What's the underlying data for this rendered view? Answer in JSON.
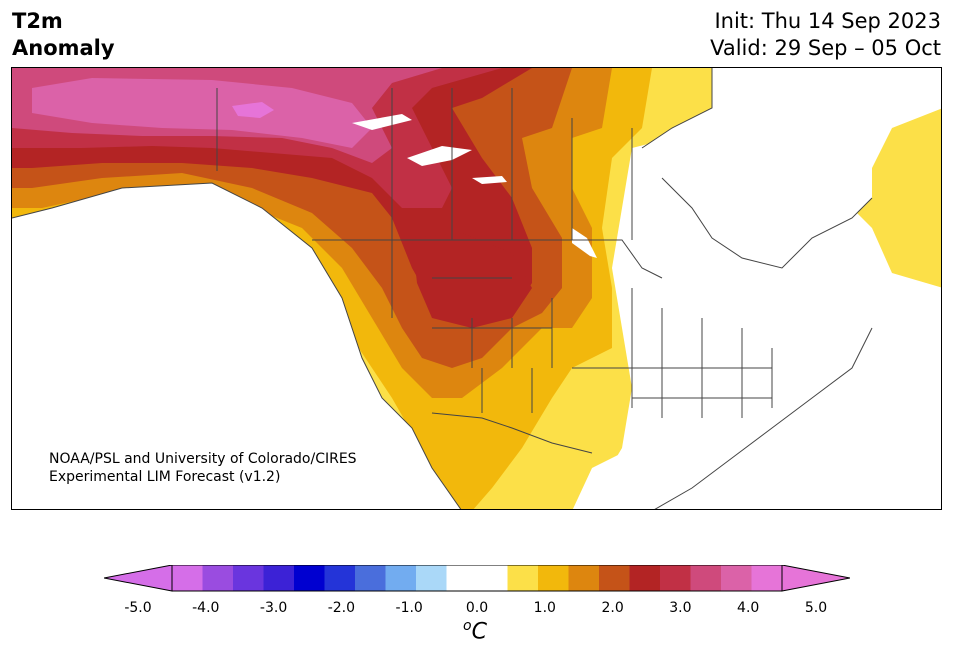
{
  "title": {
    "variable": "T2m",
    "subtitle": "Anomaly",
    "init": "Init: Thu 14 Sep 2023",
    "valid": "Valid: 29 Sep – 05 Oct"
  },
  "credit": {
    "line1": "NOAA/PSL and University of Colorado/CIRES",
    "line2": "Experimental LIM Forecast (v1.2)"
  },
  "colorbar": {
    "unit": "oC",
    "ticks": [
      "-5.0",
      "-4.0",
      "-3.0",
      "-2.0",
      "-1.0",
      "0.0",
      "1.0",
      "2.0",
      "3.0",
      "4.0",
      "5.0"
    ],
    "colors": [
      "#d56ee8",
      "#9a4ce0",
      "#6a35de",
      "#3c22d6",
      "#0000d0",
      "#2434d8",
      "#4a6edc",
      "#72acf0",
      "#aad8f8",
      "#ffffff",
      "#ffffff",
      "#fce048",
      "#f2b80c",
      "#dd860f",
      "#c55318",
      "#b32424",
      "#c13045",
      "#cf4a7c",
      "#db62a8",
      "#e674d8"
    ],
    "under_color": "#d56ee8",
    "over_color": "#e674d8"
  },
  "map": {
    "region": "North America",
    "palette": {
      "lvl1": "#fce048",
      "lvl2": "#f2b80c",
      "lvl3": "#dd860f",
      "lvl4": "#c55318",
      "lvl5": "#b32424",
      "lvl6": "#c13045",
      "lvl7": "#cf4a7c",
      "lvl8": "#db62a8",
      "lvl9": "#e674d8",
      "land_line": "#444444"
    }
  }
}
